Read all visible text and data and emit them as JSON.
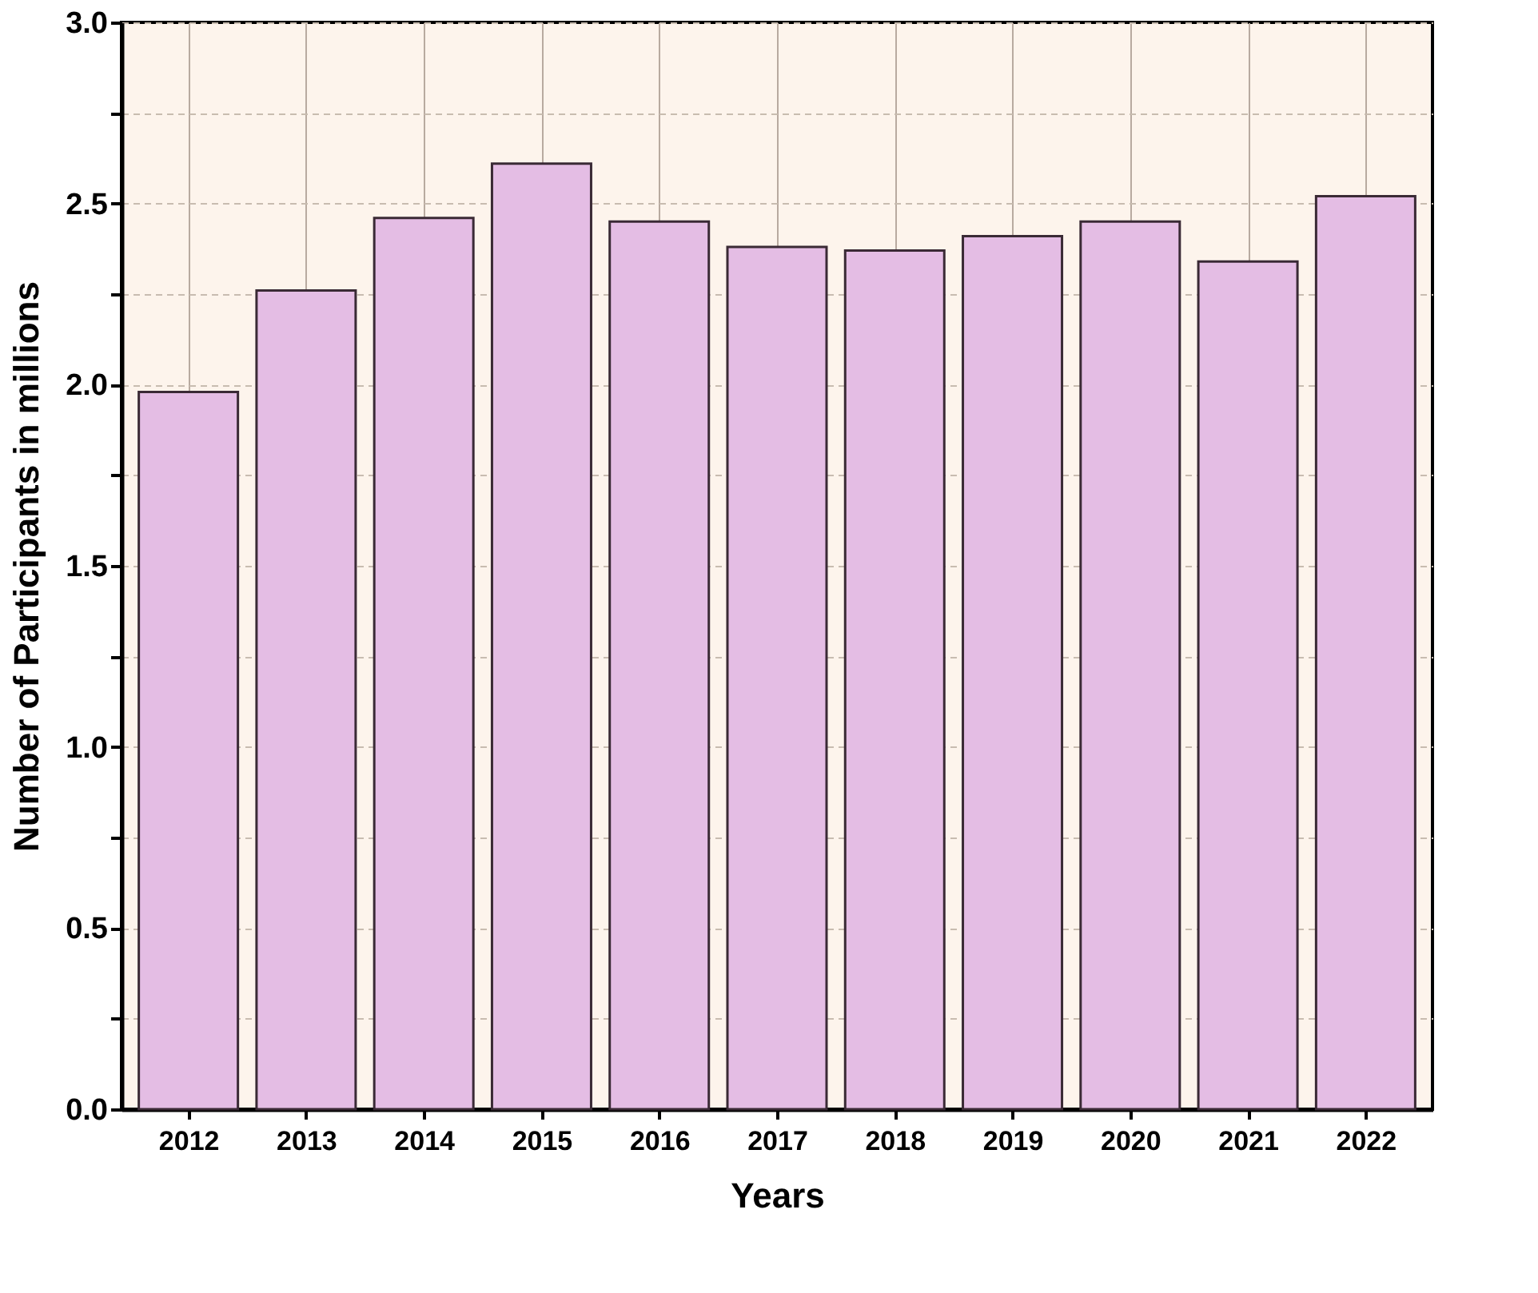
{
  "chart_data": {
    "type": "bar",
    "xlabel": "Years",
    "ylabel": "Number of Participants in millions",
    "categories": [
      "2012",
      "2013",
      "2014",
      "2015",
      "2016",
      "2017",
      "2018",
      "2019",
      "2020",
      "2021",
      "2022"
    ],
    "values": [
      1.98,
      2.26,
      2.46,
      2.61,
      2.45,
      2.38,
      2.37,
      2.41,
      2.45,
      2.34,
      2.52
    ],
    "color": "#e4bde4",
    "ylim": [
      0,
      3.0
    ],
    "yticks": [
      {
        "value": 0,
        "label": "0.0"
      },
      {
        "value": 0.25,
        "label": null
      },
      {
        "value": 0.5,
        "label": "0.5"
      },
      {
        "value": 0.75,
        "label": null
      },
      {
        "value": 1.0,
        "label": "1.0"
      },
      {
        "value": 1.25,
        "label": null
      },
      {
        "value": 1.5,
        "label": "1.5"
      },
      {
        "value": 1.75,
        "label": null
      },
      {
        "value": 2.0,
        "label": "2.0"
      },
      {
        "value": 2.25,
        "label": null
      },
      {
        "value": 2.5,
        "label": "2.5"
      },
      {
        "value": 2.75,
        "label": null
      },
      {
        "value": 3.0,
        "label": "3.0"
      }
    ],
    "grid": true
  }
}
